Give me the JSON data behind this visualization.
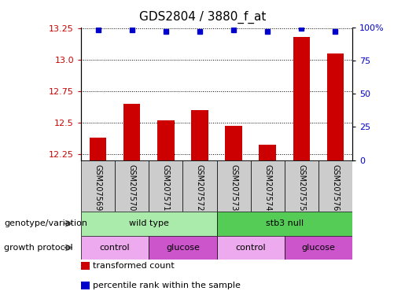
{
  "title": "GDS2804 / 3880_f_at",
  "samples": [
    "GSM207569",
    "GSM207570",
    "GSM207571",
    "GSM207572",
    "GSM207573",
    "GSM207574",
    "GSM207575",
    "GSM207576"
  ],
  "bar_values": [
    12.38,
    12.65,
    12.52,
    12.6,
    12.47,
    12.32,
    13.18,
    13.05
  ],
  "percentile_values": [
    98,
    98,
    97,
    97,
    98,
    97,
    99,
    97
  ],
  "ylim_left": [
    12.2,
    13.26
  ],
  "ylim_right": [
    0,
    100
  ],
  "yticks_left": [
    12.25,
    12.5,
    12.75,
    13.0,
    13.25
  ],
  "yticks_right": [
    0,
    25,
    50,
    75,
    100
  ],
  "bar_color": "#cc0000",
  "dot_color": "#0000cc",
  "genotype_groups": [
    {
      "label": "wild type",
      "start": 0,
      "end": 4,
      "color": "#aaeaaa"
    },
    {
      "label": "stb3 null",
      "start": 4,
      "end": 8,
      "color": "#55cc55"
    }
  ],
  "growth_groups": [
    {
      "label": "control",
      "start": 0,
      "end": 2,
      "color": "#eeaaee"
    },
    {
      "label": "glucose",
      "start": 2,
      "end": 4,
      "color": "#cc55cc"
    },
    {
      "label": "control",
      "start": 4,
      "end": 6,
      "color": "#eeaaee"
    },
    {
      "label": "glucose",
      "start": 6,
      "end": 8,
      "color": "#cc55cc"
    }
  ],
  "legend_items": [
    {
      "label": "transformed count",
      "color": "#cc0000"
    },
    {
      "label": "percentile rank within the sample",
      "color": "#0000cc"
    }
  ],
  "left_label_color": "#cc0000",
  "right_label_color": "#0000cc",
  "annotation_genotype": "genotype/variation",
  "annotation_growth": "growth protocol",
  "sample_box_color": "#cccccc",
  "tick_label_fontsize": 7,
  "title_fontsize": 11,
  "bar_width": 0.5
}
